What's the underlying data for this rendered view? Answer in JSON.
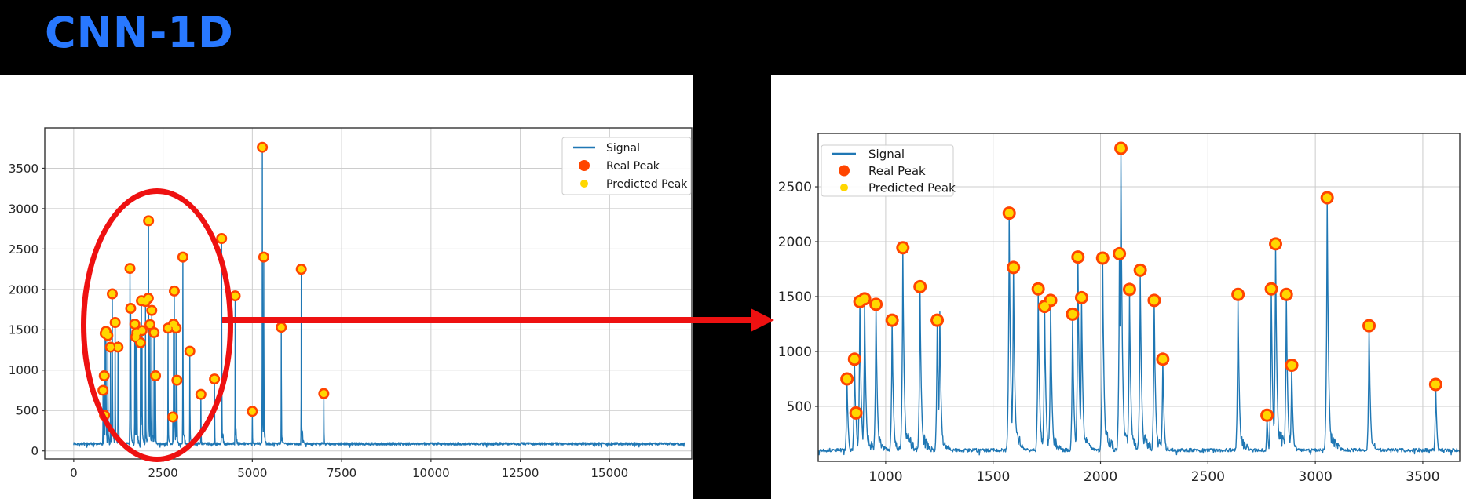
{
  "title": {
    "text": "CNN-1D",
    "color": "#2878ff"
  },
  "colors": {
    "page_background": "#000000",
    "panel_background": "#ffffff",
    "signal": "#1f77b4",
    "real_peak": "#ff4500",
    "predicted_peak": "#ffd700",
    "annotation": "#ee1111",
    "grid": "#cccccc",
    "spine": "#333333",
    "tick_label": "#262626",
    "legend_border": "#cccccc",
    "legend_text": "#1a1a1a"
  },
  "legend_items": [
    {
      "label": "Signal",
      "marker": "line"
    },
    {
      "label": "Real Peak",
      "marker": "dot-real"
    },
    {
      "label": "Predicted Peak",
      "marker": "dot-predicted"
    }
  ],
  "annotations": {
    "ellipse_note": "red ellipse highlighting dense peak cluster on overview chart",
    "arrow_note": "red arrow from highlighted cluster to zoomed chart"
  },
  "chart_data": [
    {
      "id": "overview",
      "type": "line",
      "title": "",
      "xlabel": "",
      "ylabel": "",
      "grid": true,
      "legend_position": "upper right",
      "xlim": [
        -810,
        17300
      ],
      "ylim": [
        -100,
        4000
      ],
      "xticks": [
        0,
        2500,
        5000,
        7500,
        10000,
        12500,
        15000
      ],
      "yticks": [
        0,
        500,
        1000,
        1500,
        2000,
        2500,
        3000,
        3500
      ],
      "series_label": "Signal",
      "baseline_noise": 88,
      "signal_range": [
        0,
        17100
      ],
      "peaks": [
        [
          820,
          750
        ],
        [
          855,
          930
        ],
        [
          862,
          440
        ],
        [
          880,
          1455
        ],
        [
          902,
          1480
        ],
        [
          955,
          1430
        ],
        [
          1030,
          1285
        ],
        [
          1080,
          1945
        ],
        [
          1160,
          1590
        ],
        [
          1240,
          1285
        ],
        [
          1575,
          2260
        ],
        [
          1595,
          1765
        ],
        [
          1710,
          1570
        ],
        [
          1740,
          1410
        ],
        [
          1768,
          1465
        ],
        [
          1870,
          1340
        ],
        [
          1895,
          1860
        ],
        [
          1912,
          1490
        ],
        [
          2010,
          1850
        ],
        [
          2088,
          1890
        ],
        [
          2095,
          2850
        ],
        [
          2135,
          1565
        ],
        [
          2185,
          1740
        ],
        [
          2250,
          1465
        ],
        [
          2290,
          930
        ],
        [
          2640,
          1520
        ],
        [
          2775,
          420
        ],
        [
          2795,
          1570
        ],
        [
          2815,
          1980
        ],
        [
          2865,
          1520
        ],
        [
          2890,
          875
        ],
        [
          3055,
          2400
        ],
        [
          3250,
          1235
        ],
        [
          3560,
          700
        ],
        [
          3940,
          890
        ],
        [
          4140,
          2630
        ],
        [
          4520,
          1920
        ],
        [
          5000,
          490
        ],
        [
          5280,
          3760
        ],
        [
          5320,
          2400
        ],
        [
          5810,
          1530
        ],
        [
          6370,
          2250
        ],
        [
          7000,
          710
        ]
      ],
      "unmarked_line_peaks": [
        [
          1252,
          1360
        ]
      ]
    },
    {
      "id": "zoomed",
      "type": "line",
      "title": "",
      "xlabel": "",
      "ylabel": "",
      "grid": true,
      "legend_position": "upper left",
      "xlim": [
        686,
        3672
      ],
      "ylim": [
        0,
        2986
      ],
      "xticks": [
        1000,
        1500,
        2000,
        2500,
        3000,
        3500
      ],
      "yticks": [
        500,
        1000,
        1500,
        2000,
        2500
      ],
      "series_label": "Signal",
      "baseline_noise": 102,
      "signal_range": [
        686,
        3672
      ],
      "peaks": [
        [
          820,
          750
        ],
        [
          855,
          930
        ],
        [
          862,
          440
        ],
        [
          880,
          1455
        ],
        [
          902,
          1480
        ],
        [
          955,
          1430
        ],
        [
          1030,
          1285
        ],
        [
          1080,
          1945
        ],
        [
          1160,
          1590
        ],
        [
          1240,
          1285
        ],
        [
          1575,
          2260
        ],
        [
          1595,
          1765
        ],
        [
          1710,
          1570
        ],
        [
          1740,
          1410
        ],
        [
          1768,
          1465
        ],
        [
          1870,
          1340
        ],
        [
          1895,
          1860
        ],
        [
          1912,
          1490
        ],
        [
          2010,
          1850
        ],
        [
          2088,
          1890
        ],
        [
          2095,
          2850
        ],
        [
          2135,
          1565
        ],
        [
          2185,
          1740
        ],
        [
          2250,
          1465
        ],
        [
          2290,
          930
        ],
        [
          2640,
          1520
        ],
        [
          2775,
          420
        ],
        [
          2795,
          1570
        ],
        [
          2815,
          1980
        ],
        [
          2865,
          1520
        ],
        [
          2890,
          875
        ],
        [
          3055,
          2400
        ],
        [
          3250,
          1235
        ],
        [
          3560,
          700
        ]
      ],
      "unmarked_line_peaks": [
        [
          1252,
          1360
        ]
      ]
    }
  ]
}
